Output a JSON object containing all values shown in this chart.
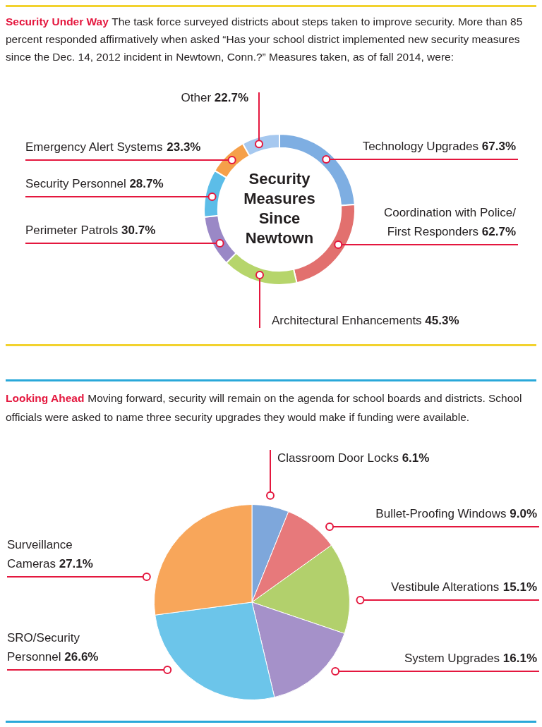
{
  "chart_data": [
    {
      "type": "donut",
      "title": "Security Under Way",
      "subtitle": "The task force surveyed districts about steps taken to improve security. More than 85 percent responded affirmatively when asked “Has your school district implemented new security measures since the Dec. 14, 2012 incident in Newtown, Conn.?” Measures taken, as of fall 2014, were:",
      "categories": [
        "Technology Upgrades",
        "Coordination with Police/ First Responders",
        "Architectural Enhancements",
        "Perimeter Patrols",
        "Security Personnel",
        "Emergency Alert Systems",
        "Other"
      ],
      "values": [
        67.3,
        62.7,
        45.3,
        30.7,
        28.7,
        23.3,
        22.7
      ],
      "value_labels": [
        "67.3%",
        "62.7%",
        "45.3%",
        "30.7%",
        "28.7%",
        "23.3%",
        "22.7%"
      ],
      "colors": [
        "#7eaee2",
        "#e2706e",
        "#b6d56b",
        "#9a88c6",
        "#5cbde8",
        "#f5a04a",
        "#a6c8ef"
      ],
      "annotations": [
        "Security Measures Since Newtown"
      ]
    },
    {
      "type": "pie",
      "title": "Looking Ahead",
      "subtitle": "Moving forward, security will remain on the agenda for school boards and districts. School officials were asked to name three security upgrades they would make if funding were available.",
      "categories": [
        "Classroom Door Locks",
        "Bullet-Proofing Windows",
        "Vestibule Alterations",
        "System Upgrades",
        "SRO/Security Personnel",
        "Surveillance Cameras"
      ],
      "values": [
        6.1,
        9.0,
        15.1,
        16.1,
        26.6,
        27.1
      ],
      "value_labels": [
        "6.1%",
        "9.0%",
        "15.1%",
        "16.1%",
        "26.6%",
        "27.1%"
      ],
      "colors": [
        "#7ea7db",
        "#e7797b",
        "#b2d06c",
        "#a591c9",
        "#6cc5ea",
        "#f8a65a"
      ]
    }
  ]
}
